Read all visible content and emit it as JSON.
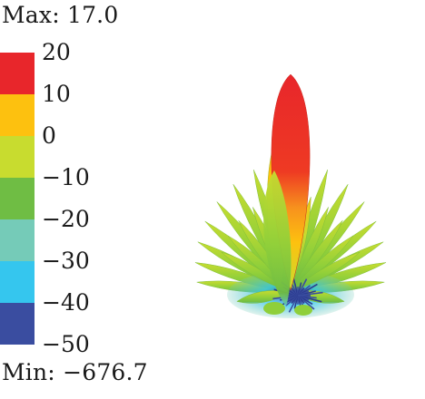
{
  "max_label": "Max: 17.0",
  "min_label": "Min: −676.7",
  "colorbar": {
    "bands": [
      {
        "upper": 20,
        "lower": 10,
        "color": "#e8262b"
      },
      {
        "upper": 10,
        "lower": 0,
        "color": "#fdc10f"
      },
      {
        "upper": 0,
        "lower": -10,
        "color": "#c8dc2f"
      },
      {
        "upper": -10,
        "lower": -20,
        "color": "#6fbd44"
      },
      {
        "upper": -20,
        "lower": -30,
        "color": "#75cbb8"
      },
      {
        "upper": -30,
        "lower": -40,
        "color": "#35c6ee"
      },
      {
        "upper": -40,
        "lower": -50,
        "color": "#3a4da0"
      }
    ],
    "tick_labels": [
      "20",
      "10",
      "0",
      "−10",
      "−20",
      "−30",
      "−40",
      "−50"
    ]
  },
  "chart_data": {
    "type": "other",
    "title": "",
    "max_value": 17.0,
    "min_value": -676.7,
    "colorbar_range": [
      -50,
      20
    ],
    "colorbar_ticks": [
      20,
      10,
      0,
      -10,
      -20,
      -30,
      -40,
      -50
    ]
  }
}
